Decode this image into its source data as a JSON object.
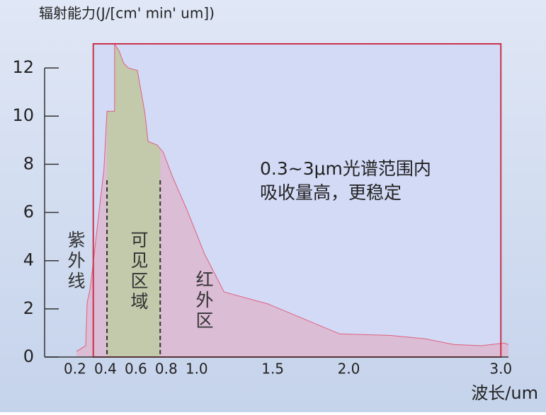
{
  "chart_data": {
    "type": "area",
    "y_axis_title": "辐射能力(J/[cm' min' um])",
    "x_axis_title": "波长/um",
    "annotation": [
      "0.3~3μm光谱范围内",
      "吸收量高，更稳定"
    ],
    "region_labels": [
      "紫外线",
      "可见区域",
      "红外区"
    ],
    "x": [
      0.21,
      0.27,
      0.28,
      0.3,
      0.39,
      0.41,
      0.46,
      0.46,
      0.49,
      0.52,
      0.55,
      0.61,
      0.66,
      0.68,
      0.74,
      0.78,
      0.84,
      0.94,
      1.05,
      1.18,
      1.47,
      1.66,
      1.94,
      2.27,
      2.5,
      2.69,
      2.87,
      3.02,
      3.05
    ],
    "values": [
      0.23,
      0.47,
      2.27,
      2.85,
      7.8,
      10.2,
      10.2,
      13.0,
      12.7,
      12.2,
      12.0,
      11.9,
      10.1,
      8.95,
      8.8,
      8.5,
      7.5,
      6.05,
      4.3,
      2.7,
      2.2,
      1.7,
      0.96,
      0.9,
      0.76,
      0.52,
      0.47,
      0.58,
      0.52
    ],
    "color": "#dbbdd5",
    "line_color": "#e0607e",
    "visible_band": [
      0.41,
      0.76
    ],
    "visible_color": "#c3c9ab",
    "highlight": [
      0.32,
      3.0
    ],
    "frame_color": "#c8324a",
    "xlim": [
      0,
      3.05
    ],
    "ylim": [
      0,
      13
    ],
    "xticks": [
      0.2,
      0.4,
      0.6,
      0.8,
      {
        "value": 1,
        "label": "1.0"
      },
      1.5,
      {
        "value": 2,
        "label": "2.0"
      },
      {
        "value": 3,
        "label": "3.0"
      }
    ],
    "yticks": [
      0,
      2,
      4,
      6,
      8,
      10,
      12
    ]
  }
}
